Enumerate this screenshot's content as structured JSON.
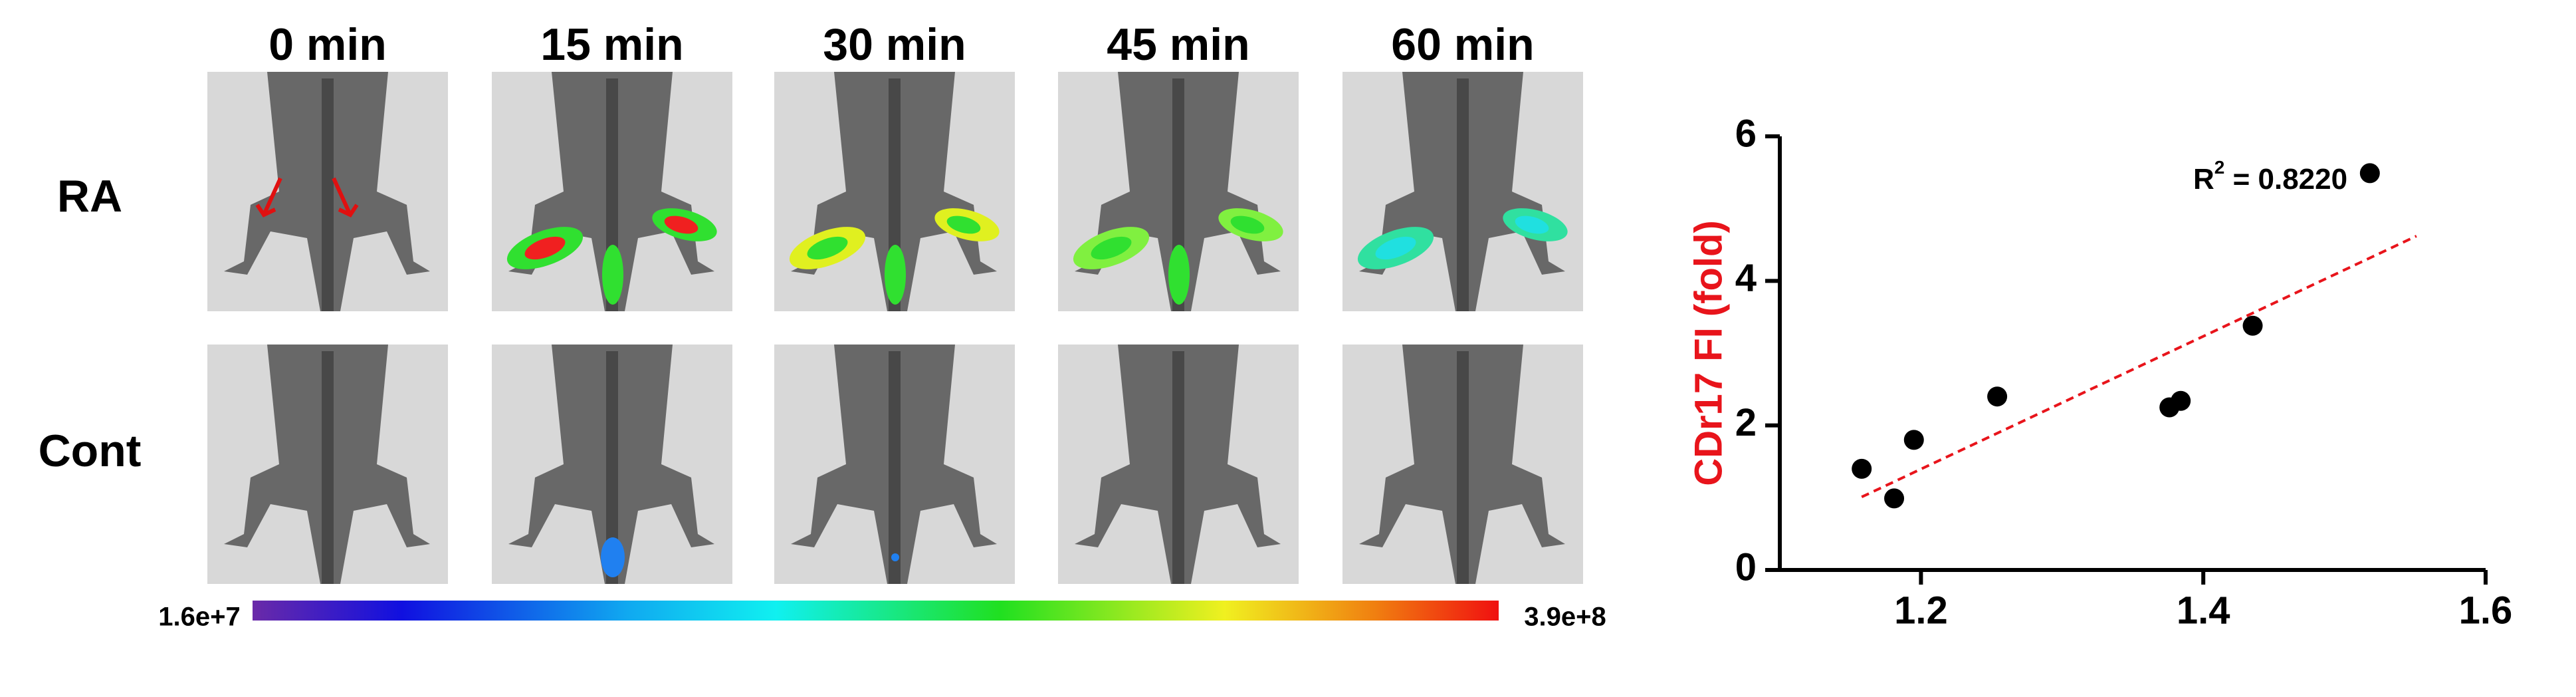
{
  "figure": {
    "columns": [
      "0 min",
      "15 min",
      "30 min",
      "45 min",
      "60 min"
    ],
    "rows": [
      "RA",
      "Cont"
    ],
    "colorbar": {
      "min_label": "1.6e+7",
      "max_label": "3.9e+8"
    }
  },
  "chart_data": {
    "type": "scatter",
    "y_label": "CDr17 FI (fold)",
    "y_label_color": "#e8141b",
    "x": [
      1.158,
      1.181,
      1.195,
      1.254,
      1.376,
      1.384,
      1.435,
      1.518
    ],
    "y": [
      1.4,
      0.99,
      1.8,
      2.4,
      2.25,
      2.34,
      3.38,
      5.49
    ],
    "color": "#000000",
    "xlim": [
      1.1,
      1.6
    ],
    "xticks": [
      1.2,
      1.4,
      1.6
    ],
    "ylim": [
      0,
      6
    ],
    "yticks": [
      0,
      2,
      4,
      6
    ],
    "grid": false,
    "trendline": {
      "x": [
        1.158,
        1.551
      ],
      "y": [
        1.01,
        4.62
      ],
      "color": "#e8141b",
      "dashed": true
    },
    "annotation": {
      "base": "R",
      "sup": "2",
      "rest": " = 0.8220"
    }
  }
}
